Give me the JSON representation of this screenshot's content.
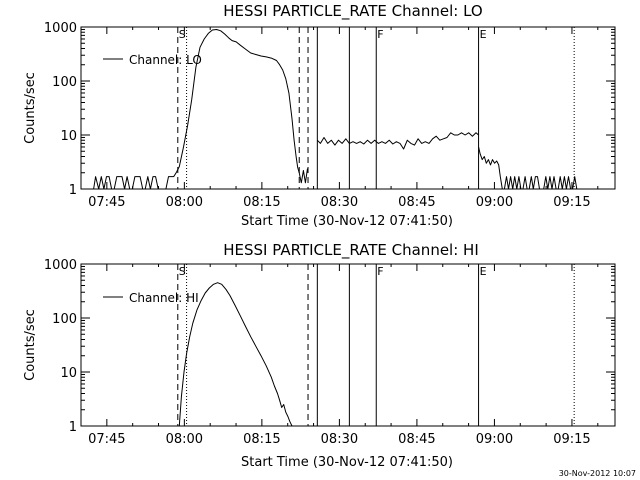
{
  "timestamp": "30-Nov-2012 10:07",
  "chart_data": [
    {
      "type": "line",
      "title": "HESSI PARTICLE_RATE Channel: LO",
      "xlabel": "Start Time (30-Nov-12 07:41:50)",
      "ylabel": "Counts/sec",
      "yscale": "log",
      "ylim": [
        1,
        1000
      ],
      "xlim_min": [
        -1.83,
        101.5
      ],
      "x_unit": "minutes after 07:41:50",
      "x_ticks": [
        {
          "t": 3.17,
          "label": "07:45"
        },
        {
          "t": 18.17,
          "label": "08:00"
        },
        {
          "t": 33.17,
          "label": "08:15"
        },
        {
          "t": 48.17,
          "label": "08:30"
        },
        {
          "t": 63.17,
          "label": "08:45"
        },
        {
          "t": 78.17,
          "label": "09:00"
        },
        {
          "t": 93.17,
          "label": "09:15"
        }
      ],
      "y_ticks": [
        {
          "v": 1,
          "label": "1"
        },
        {
          "v": 10,
          "label": "10"
        },
        {
          "v": 100,
          "label": "100"
        },
        {
          "v": 1000,
          "label": "1000"
        }
      ],
      "legend": "Channel: LO",
      "markers": [
        {
          "t": 16.9,
          "style": "dashed",
          "label": "S"
        },
        {
          "t": 18.6,
          "style": "dotted",
          "label": ""
        },
        {
          "t": 40.4,
          "style": "dashed",
          "label": ""
        },
        {
          "t": 42.1,
          "style": "dashed",
          "label": ""
        },
        {
          "t": 43.9,
          "style": "solid",
          "label": ""
        },
        {
          "t": 50.1,
          "style": "solid",
          "label": ""
        },
        {
          "t": 55.3,
          "style": "solid",
          "label": "F"
        },
        {
          "t": 75.1,
          "style": "solid",
          "label": "E"
        },
        {
          "t": 93.6,
          "style": "dotted",
          "label": ""
        }
      ],
      "series": [
        {
          "name": "Channel: LO",
          "segments": [
            {
              "x": [
                -1.8,
                0.1,
                0.6,
                1.0,
                1.6,
                2.1,
                2.6,
                3.1,
                3.6,
                4.1,
                4.6,
                5.1,
                5.6,
                6.1,
                6.6,
                7.1,
                7.6,
                8.1,
                8.6,
                9.1,
                9.6,
                10.1,
                10.6,
                11.1,
                11.6,
                12.1,
                12.6,
                13.1,
                13.6,
                14.1,
                14.6,
                15.1,
                15.6,
                16.1,
                16.6,
                17.2,
                18.0,
                18.8,
                19.6,
                20.4,
                21.2,
                22.0,
                22.8,
                23.6,
                24.4,
                25.2,
                26.0,
                26.8,
                27.4,
                28.2,
                29.0,
                30.0,
                31.0,
                32.0,
                33.0,
                34.0,
                35.0,
                36.0,
                36.6,
                37.2,
                37.8,
                38.4,
                39.0,
                39.4,
                39.8,
                40.1,
                40.4,
                40.8,
                41.2,
                41.6,
                42.0
              ],
              "y": [
                1,
                1,
                1,
                1.7,
                1,
                1.7,
                1,
                1.7,
                1.7,
                1,
                1,
                1.7,
                1.7,
                1.7,
                1,
                1.7,
                1,
                1,
                1.7,
                1.7,
                1.7,
                1,
                1,
                1.7,
                1,
                1.7,
                1.7,
                1,
                1,
                1,
                1,
                1.7,
                1.7,
                1.7,
                2,
                2.6,
                6,
                15,
                45,
                180,
                420,
                600,
                760,
                880,
                900,
                850,
                740,
                620,
                560,
                530,
                460,
                390,
                330,
                310,
                290,
                280,
                265,
                240,
                200,
                160,
                110,
                60,
                20,
                8,
                4,
                2.5,
                2,
                1.3,
                2.2,
                1.3,
                2.4
              ]
            },
            {
              "x": [
                43.9,
                44.5,
                45.2,
                45.9,
                46.6,
                47.3,
                48.0,
                48.7,
                49.4,
                50.1,
                50.8,
                51.5,
                52.2,
                52.9,
                53.6,
                54.3,
                55.0,
                55.7,
                56.4,
                57.1,
                57.8,
                58.5,
                59.2,
                59.9,
                60.6,
                61.3,
                62.0,
                62.7,
                63.4,
                64.1,
                64.8,
                65.5,
                66.2,
                66.9,
                67.6,
                68.3,
                69.0,
                69.7,
                70.4,
                71.1,
                71.8,
                72.5,
                73.2,
                73.9,
                74.6,
                75.1
              ],
              "y": [
                8,
                7,
                9,
                7,
                8,
                6.5,
                8,
                7,
                8.5,
                7,
                7.5,
                7,
                7.5,
                6.8,
                8,
                7,
                8,
                7,
                7.5,
                7,
                8,
                6.8,
                7.5,
                7,
                5.5,
                8,
                7,
                6.5,
                8.5,
                7,
                7.5,
                7,
                8.5,
                9.5,
                8,
                8.5,
                9,
                11,
                10,
                10,
                11,
                10,
                11,
                9.5,
                11,
                10
              ]
            },
            {
              "x": [
                75.1,
                75.4,
                75.8,
                76.2,
                76.6,
                77.0,
                77.4,
                77.8,
                78.2,
                78.6,
                79.0,
                79.3,
                79.7,
                80.1,
                80.5,
                80.9,
                81.3,
                81.7,
                82.1,
                82.5,
                82.9,
                83.3,
                83.7,
                84.1,
                84.5,
                84.9,
                85.3,
                85.7,
                86.1,
                86.5,
                86.9,
                87.3,
                87.7,
                88.1,
                88.5,
                88.9,
                89.3,
                89.7,
                90.1,
                90.5,
                90.9,
                91.3,
                91.7,
                92.1,
                92.5,
                92.9,
                93.3,
                93.7,
                94.1
              ],
              "y": [
                6,
                4.5,
                3.5,
                4,
                3,
                3.5,
                2.8,
                3.5,
                3,
                3.3,
                2.8,
                1.7,
                1,
                1,
                1.7,
                1,
                1.7,
                1,
                1.7,
                1,
                1.7,
                1,
                1,
                1.7,
                1,
                1,
                1.7,
                1,
                1.7,
                1.7,
                1,
                1,
                1,
                1.7,
                1,
                1.7,
                1,
                1.7,
                1,
                1,
                1.7,
                1,
                1.7,
                1,
                1.7,
                1,
                1,
                1.7,
                1
              ]
            }
          ]
        }
      ]
    },
    {
      "type": "line",
      "title": "HESSI PARTICLE_RATE Channel: HI",
      "xlabel": "Start Time (30-Nov-12 07:41:50)",
      "ylabel": "Counts/sec",
      "yscale": "log",
      "ylim": [
        1,
        1000
      ],
      "xlim_min": [
        -1.83,
        101.5
      ],
      "x_unit": "minutes after 07:41:50",
      "x_ticks": [
        {
          "t": 3.17,
          "label": "07:45"
        },
        {
          "t": 18.17,
          "label": "08:00"
        },
        {
          "t": 33.17,
          "label": "08:15"
        },
        {
          "t": 48.17,
          "label": "08:30"
        },
        {
          "t": 63.17,
          "label": "08:45"
        },
        {
          "t": 78.17,
          "label": "09:00"
        },
        {
          "t": 93.17,
          "label": "09:15"
        }
      ],
      "y_ticks": [
        {
          "v": 1,
          "label": "1"
        },
        {
          "v": 10,
          "label": "10"
        },
        {
          "v": 100,
          "label": "100"
        },
        {
          "v": 1000,
          "label": "1000"
        }
      ],
      "legend": "Channel: HI",
      "markers": [
        {
          "t": 16.9,
          "style": "dashed",
          "label": "S"
        },
        {
          "t": 18.6,
          "style": "dotted",
          "label": ""
        },
        {
          "t": 42.1,
          "style": "dashed",
          "label": ""
        },
        {
          "t": 43.9,
          "style": "solid",
          "label": ""
        },
        {
          "t": 50.1,
          "style": "solid",
          "label": ""
        },
        {
          "t": 55.3,
          "style": "solid",
          "label": "F"
        },
        {
          "t": 75.1,
          "style": "solid",
          "label": "E"
        },
        {
          "t": 93.6,
          "style": "dotted",
          "label": ""
        }
      ],
      "series": [
        {
          "name": "Channel: HI",
          "segments": [
            {
              "x": [
                17.2,
                17.6,
                18.1,
                18.6,
                19.2,
                19.8,
                20.6,
                21.4,
                22.2,
                23.0,
                23.8,
                24.6,
                25.4,
                26.2,
                27.0,
                28.0,
                29.0,
                30.0,
                31.0,
                32.0,
                33.0,
                34.0,
                35.0,
                35.6,
                36.2,
                36.6,
                37.0,
                37.4,
                37.8,
                38.2,
                38.6,
                39.0
              ],
              "y": [
                1,
                3.5,
                10,
                22,
                45,
                80,
                140,
                210,
                290,
                360,
                420,
                450,
                420,
                340,
                260,
                170,
                110,
                70,
                45,
                30,
                20,
                13,
                8,
                5.5,
                4,
                3,
                2.2,
                2.5,
                1.8,
                1.5,
                1.2,
                1
              ]
            }
          ]
        }
      ]
    }
  ]
}
